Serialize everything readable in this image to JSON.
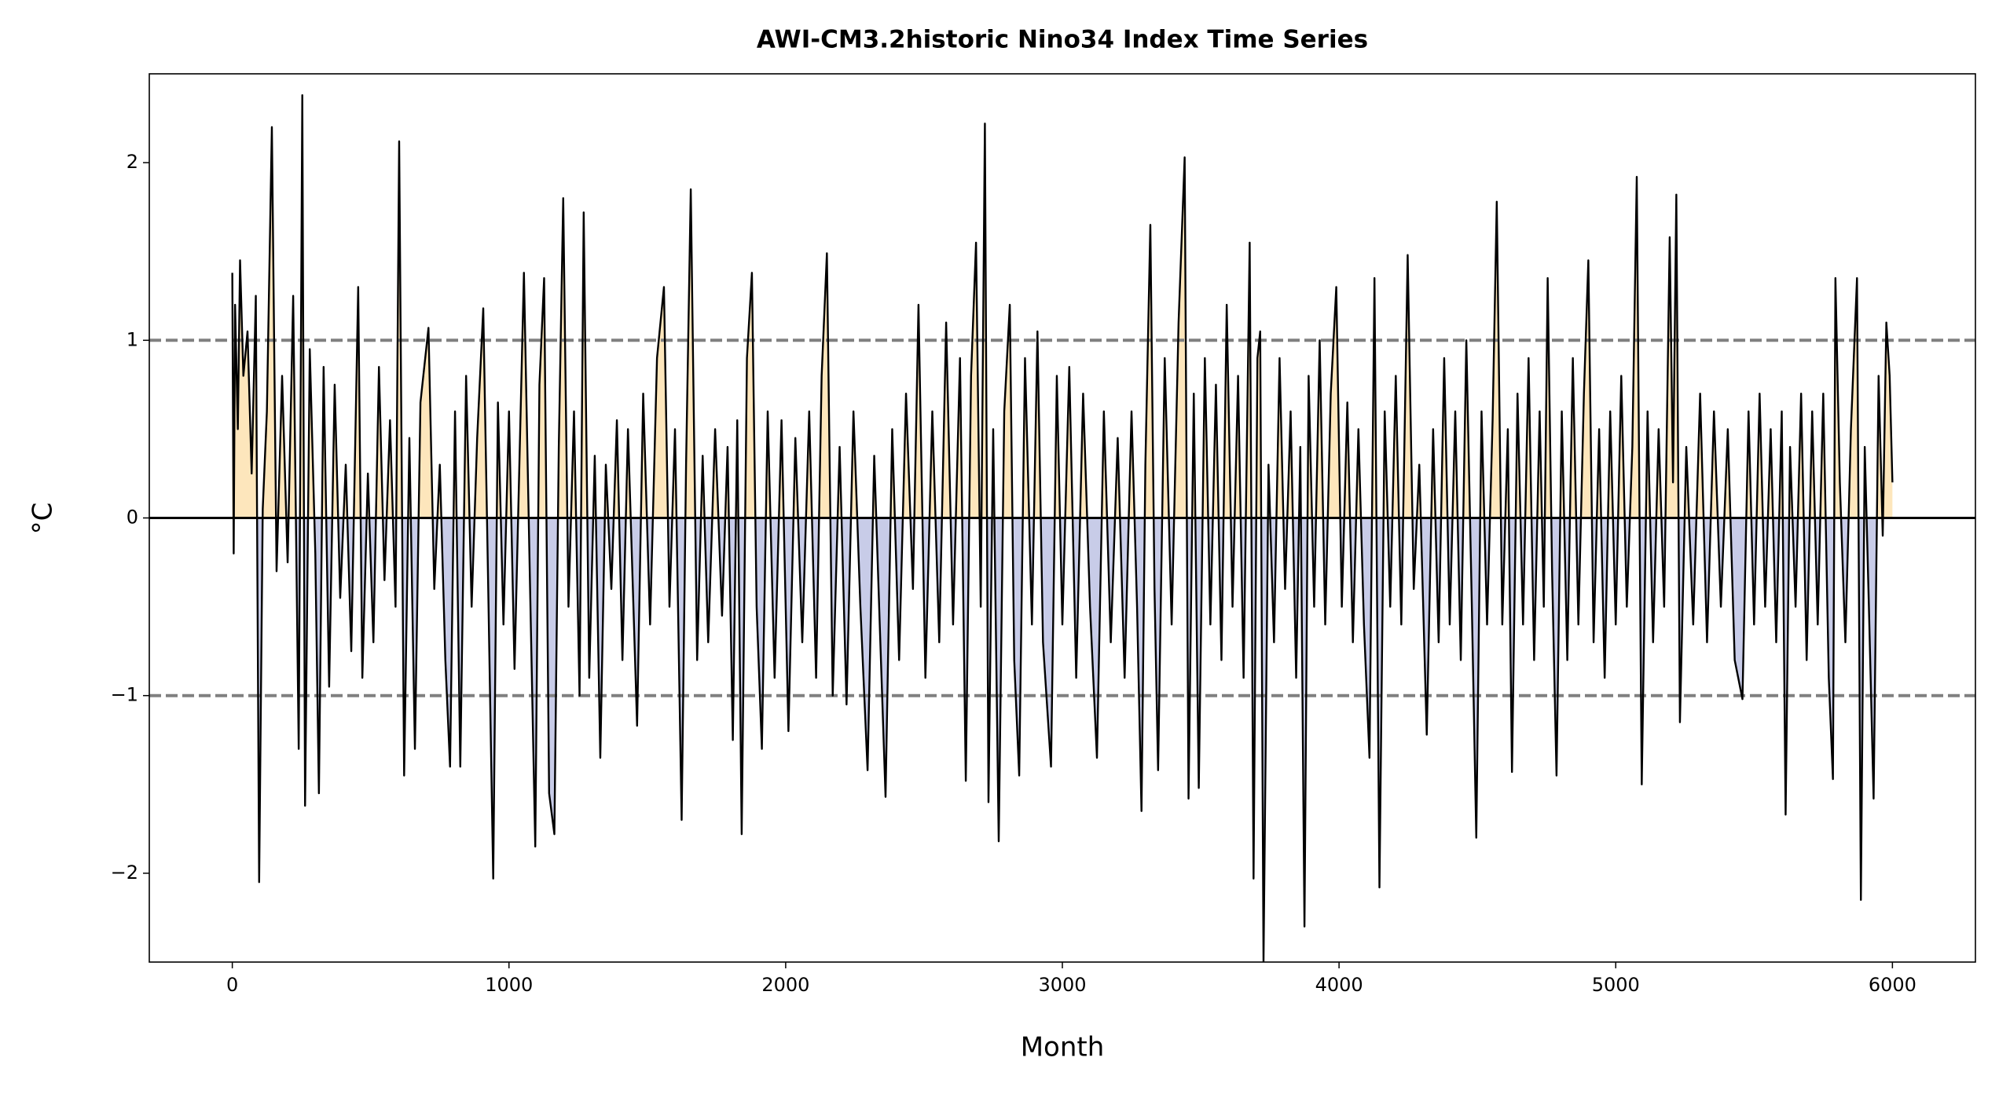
{
  "chart_data": {
    "type": "line",
    "title": "AWI-CM3.2historic Nino34 Index Time Series",
    "x_label": "Month",
    "y_label": "°C",
    "xlim": [
      -300,
      6300
    ],
    "ylim": [
      -2.5,
      2.5
    ],
    "xticks": [
      0,
      1000,
      2000,
      3000,
      4000,
      5000,
      6000
    ],
    "yticks": [
      {
        "value": -2,
        "label": "−2"
      },
      {
        "value": -1,
        "label": "−1"
      },
      0,
      1,
      2
    ],
    "threshold_lines": [
      1,
      -1
    ],
    "threshold_color": "#808080",
    "zero_line": 0,
    "line_color": "#000000",
    "positive_fill": "#fde6bc",
    "negative_fill": "#c8cce8",
    "x": [
      0,
      5,
      10,
      20,
      28,
      40,
      55,
      70,
      85,
      97,
      110,
      125,
      143,
      160,
      180,
      200,
      220,
      240,
      253,
      263,
      280,
      300,
      313,
      330,
      350,
      370,
      390,
      410,
      430,
      455,
      470,
      490,
      510,
      530,
      550,
      570,
      590,
      603,
      621,
      640,
      660,
      680,
      709,
      730,
      750,
      770,
      787,
      805,
      824,
      845,
      865,
      885,
      907,
      925,
      943,
      960,
      980,
      1000,
      1020,
      1054,
      1075,
      1095,
      1110,
      1127,
      1145,
      1164,
      1180,
      1196,
      1215,
      1235,
      1255,
      1270,
      1290,
      1310,
      1330,
      1350,
      1370,
      1390,
      1410,
      1430,
      1463,
      1485,
      1510,
      1535,
      1560,
      1580,
      1600,
      1624,
      1640,
      1657,
      1680,
      1700,
      1720,
      1745,
      1770,
      1790,
      1809,
      1825,
      1841,
      1860,
      1878,
      1895,
      1914,
      1935,
      1960,
      1985,
      2010,
      2035,
      2060,
      2085,
      2110,
      2130,
      2149,
      2170,
      2195,
      2220,
      2245,
      2270,
      2296,
      2320,
      2340,
      2361,
      2385,
      2410,
      2435,
      2460,
      2480,
      2505,
      2530,
      2555,
      2580,
      2605,
      2630,
      2651,
      2670,
      2688,
      2705,
      2720,
      2733,
      2750,
      2770,
      2790,
      2810,
      2826,
      2844,
      2865,
      2890,
      2910,
      2930,
      2959,
      2980,
      3000,
      3025,
      3050,
      3075,
      3100,
      3125,
      3150,
      3175,
      3200,
      3225,
      3250,
      3270,
      3286,
      3300,
      3318,
      3333,
      3346,
      3370,
      3395,
      3420,
      3442,
      3456,
      3475,
      3493,
      3515,
      3535,
      3555,
      3575,
      3594,
      3615,
      3635,
      3655,
      3677,
      3691,
      3705,
      3715,
      3727,
      3745,
      3765,
      3785,
      3805,
      3825,
      3845,
      3860,
      3875,
      3890,
      3910,
      3930,
      3950,
      3970,
      3990,
      4010,
      4030,
      4050,
      4070,
      4090,
      4110,
      4128,
      4146,
      4165,
      4185,
      4205,
      4225,
      4248,
      4270,
      4290,
      4317,
      4340,
      4360,
      4380,
      4400,
      4420,
      4440,
      4460,
      4480,
      4496,
      4515,
      4535,
      4555,
      4570,
      4590,
      4610,
      4625,
      4645,
      4665,
      4685,
      4705,
      4725,
      4740,
      4754,
      4770,
      4786,
      4805,
      4825,
      4845,
      4865,
      4885,
      4901,
      4920,
      4940,
      4960,
      4980,
      5000,
      5020,
      5040,
      5060,
      5076,
      5094,
      5115,
      5135,
      5155,
      5175,
      5195,
      5207,
      5219,
      5232,
      5255,
      5280,
      5305,
      5330,
      5355,
      5380,
      5405,
      5430,
      5458,
      5480,
      5500,
      5520,
      5540,
      5560,
      5580,
      5600,
      5614,
      5630,
      5650,
      5670,
      5690,
      5710,
      5730,
      5750,
      5770,
      5785,
      5794,
      5810,
      5830,
      5850,
      5872,
      5886,
      5900,
      5915,
      5932,
      5950,
      5965,
      5978,
      5990,
      6000
    ],
    "values": [
      1.38,
      -0.2,
      1.2,
      0.5,
      1.45,
      0.8,
      1.05,
      0.25,
      1.25,
      -2.05,
      0.05,
      0.6,
      2.2,
      -0.3,
      0.8,
      -0.25,
      1.25,
      -1.3,
      2.38,
      -1.62,
      0.95,
      -0.2,
      -1.55,
      0.85,
      -0.95,
      0.75,
      -0.45,
      0.3,
      -0.75,
      1.3,
      -0.9,
      0.25,
      -0.7,
      0.85,
      -0.35,
      0.55,
      -0.5,
      2.12,
      -1.45,
      0.45,
      -1.3,
      0.65,
      1.07,
      -0.4,
      0.3,
      -0.8,
      -1.4,
      0.6,
      -1.4,
      0.8,
      -0.5,
      0.45,
      1.18,
      -0.4,
      -2.03,
      0.65,
      -0.6,
      0.6,
      -0.85,
      1.38,
      -0.3,
      -1.85,
      0.75,
      1.35,
      -1.55,
      -1.78,
      0.4,
      1.8,
      -0.5,
      0.6,
      -1.0,
      1.72,
      -0.9,
      0.35,
      -1.35,
      0.3,
      -0.4,
      0.55,
      -0.8,
      0.5,
      -1.17,
      0.7,
      -0.6,
      0.9,
      1.3,
      -0.5,
      0.5,
      -1.7,
      0.3,
      1.85,
      -0.8,
      0.35,
      -0.7,
      0.5,
      -0.55,
      0.4,
      -1.25,
      0.55,
      -1.78,
      0.9,
      1.38,
      -0.5,
      -1.3,
      0.6,
      -0.9,
      0.55,
      -1.2,
      0.45,
      -0.7,
      0.6,
      -0.9,
      0.8,
      1.49,
      -1.0,
      0.4,
      -1.05,
      0.6,
      -0.5,
      -1.42,
      0.35,
      -0.6,
      -1.57,
      0.5,
      -0.8,
      0.7,
      -0.4,
      1.2,
      -0.9,
      0.6,
      -0.7,
      1.1,
      -0.6,
      0.9,
      -1.48,
      0.8,
      1.55,
      -0.5,
      2.22,
      -1.6,
      0.5,
      -1.82,
      0.6,
      1.2,
      -0.8,
      -1.45,
      0.9,
      -0.6,
      1.05,
      -0.7,
      -1.4,
      0.8,
      -0.6,
      0.85,
      -0.9,
      0.7,
      -0.5,
      -1.35,
      0.6,
      -0.7,
      0.45,
      -0.9,
      0.6,
      -0.5,
      -1.65,
      0.3,
      1.65,
      -0.4,
      -1.42,
      0.9,
      -0.6,
      1.1,
      2.03,
      -1.58,
      0.7,
      -1.52,
      0.9,
      -0.6,
      0.75,
      -0.8,
      1.2,
      -0.5,
      0.8,
      -0.9,
      1.55,
      -2.03,
      0.9,
      1.05,
      -2.5,
      0.3,
      -0.7,
      0.9,
      -0.4,
      0.6,
      -0.9,
      0.4,
      -2.3,
      0.8,
      -0.5,
      1.0,
      -0.6,
      0.7,
      1.3,
      -0.5,
      0.65,
      -0.7,
      0.5,
      -0.6,
      -1.35,
      1.35,
      -2.08,
      0.6,
      -0.5,
      0.8,
      -0.6,
      1.48,
      -0.4,
      0.3,
      -1.22,
      0.5,
      -0.7,
      0.9,
      -0.6,
      0.6,
      -0.8,
      1.0,
      -0.5,
      -1.8,
      0.6,
      -0.6,
      0.55,
      1.78,
      -0.6,
      0.5,
      -1.43,
      0.7,
      -0.6,
      0.9,
      -0.8,
      0.6,
      -0.5,
      1.35,
      -0.3,
      -1.45,
      0.6,
      -0.8,
      0.9,
      -0.6,
      0.7,
      1.45,
      -0.7,
      0.5,
      -0.9,
      0.6,
      -0.6,
      0.8,
      -0.5,
      0.4,
      1.92,
      -1.5,
      0.6,
      -0.7,
      0.5,
      -0.5,
      1.58,
      0.2,
      1.82,
      -1.15,
      0.4,
      -0.6,
      0.7,
      -0.7,
      0.6,
      -0.5,
      0.5,
      -0.8,
      -1.02,
      0.6,
      -0.6,
      0.7,
      -0.5,
      0.5,
      -0.7,
      0.6,
      -1.67,
      0.4,
      -0.5,
      0.7,
      -0.8,
      0.6,
      -0.6,
      0.7,
      -0.9,
      -1.47,
      1.35,
      0.2,
      -0.7,
      0.5,
      1.35,
      -2.15,
      0.4,
      -0.5,
      -1.58,
      0.8,
      -0.1,
      1.1,
      0.8,
      0.2
    ]
  }
}
